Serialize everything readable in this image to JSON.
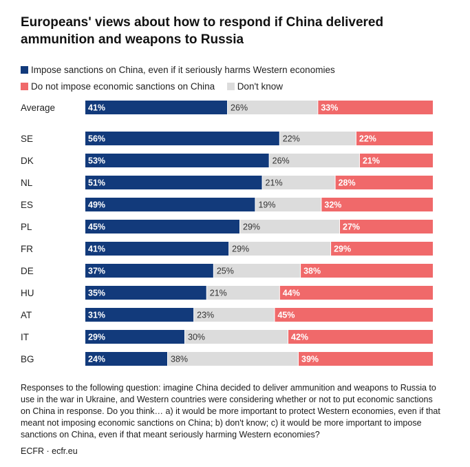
{
  "colors": {
    "impose": "#123a7b",
    "dont_know": "#dcdcdc",
    "not_impose": "#f0696a"
  },
  "chart_data": {
    "type": "bar",
    "orientation": "horizontal",
    "stacked": true,
    "title": "Europeans' views about how to respond if China delivered ammunition and weapons to Russia",
    "categories": [
      "Average",
      "SE",
      "DK",
      "NL",
      "ES",
      "PL",
      "FR",
      "DE",
      "HU",
      "AT",
      "IT",
      "BG"
    ],
    "series": [
      {
        "name": "Impose sanctions on China, even if it seriously harms Western economies",
        "values": [
          41,
          56,
          53,
          51,
          49,
          45,
          41,
          37,
          35,
          31,
          29,
          24
        ]
      },
      {
        "name": "Don't know",
        "values": [
          26,
          22,
          26,
          21,
          19,
          29,
          29,
          25,
          21,
          23,
          30,
          38
        ]
      },
      {
        "name": "Do not impose economic sanctions on China",
        "values": [
          33,
          22,
          21,
          28,
          32,
          27,
          29,
          38,
          44,
          45,
          42,
          39
        ]
      }
    ],
    "value_suffix": "%",
    "legend_position": "top",
    "grid": false
  },
  "legend": {
    "impose": "Impose sanctions on China, even if it seriously harms Western economies",
    "not_impose": "Do not impose economic sanctions on China",
    "dont_know": "Don't know"
  },
  "footnote": "Responses to the following question: imagine China decided to deliver ammunition and weapons to Russia to use in the war in Ukraine, and Western countries were considering whether or not to put economic sanctions on China in response. Do you think… a) it would be more important to protect Western economies, even if that meant not imposing economic sanctions on China; b) don't know; c) it would be more important to impose sanctions on China, even if that meant seriously harming Western economies?",
  "source": "ECFR · ecfr.eu"
}
